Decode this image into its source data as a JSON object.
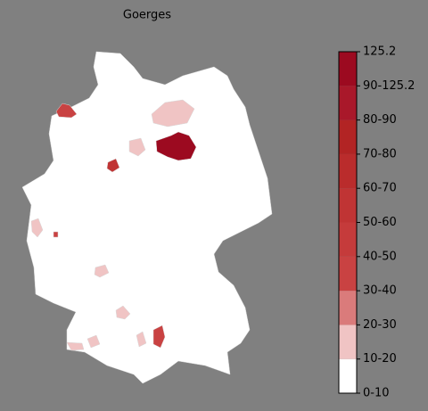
{
  "title": "Goerges",
  "colorbar": {
    "ticks": [
      "0-10",
      "10-20",
      "20-30",
      "30-40",
      "40-50",
      "50-60",
      "60-70",
      "70-80",
      "80-90",
      "90-125.2",
      "125.2"
    ],
    "colors": [
      "#ffffff",
      "#f0c4c4",
      "#da7b7b",
      "#c94242",
      "#c53b3b",
      "#c03434",
      "#ba2c2c",
      "#b22424",
      "#a9182a",
      "#9c0a20"
    ]
  }
}
